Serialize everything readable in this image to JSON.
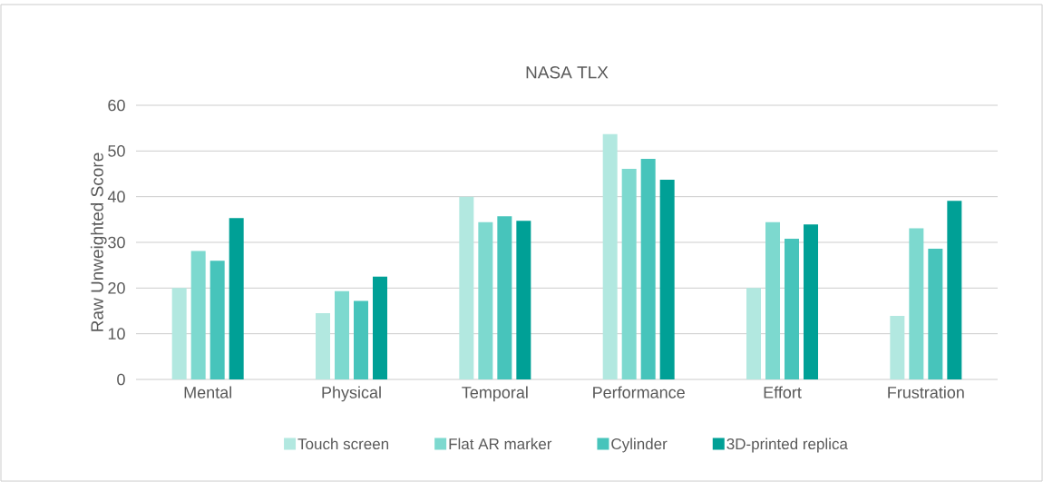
{
  "chart_data": {
    "type": "bar",
    "title": "NASA TLX",
    "ylabel": "Raw Unweighted Score",
    "categories": [
      "Mental",
      "Physical",
      "Temporal",
      "Performance",
      "Effort",
      "Frustration"
    ],
    "series": [
      {
        "name": "Touch screen",
        "color": "#b2e8e0",
        "values": [
          20,
          14.5,
          40,
          53.7,
          20,
          13.9
        ]
      },
      {
        "name": "Flat AR marker",
        "color": "#7dd9cf",
        "values": [
          28.1,
          19.3,
          34.4,
          46.1,
          34.4,
          33.1
        ]
      },
      {
        "name": "Cylinder",
        "color": "#47c4bb",
        "values": [
          26.0,
          17.2,
          35.7,
          48.3,
          30.8,
          28.6
        ]
      },
      {
        "name": "3D-printed replica",
        "color": "#00a096",
        "values": [
          35.3,
          22.5,
          34.7,
          43.7,
          33.9,
          39.1
        ]
      }
    ],
    "ylim": [
      0,
      60
    ],
    "yticks": [
      0,
      10,
      20,
      30,
      40,
      50,
      60
    ],
    "grid": "y",
    "legend": "bottom"
  }
}
